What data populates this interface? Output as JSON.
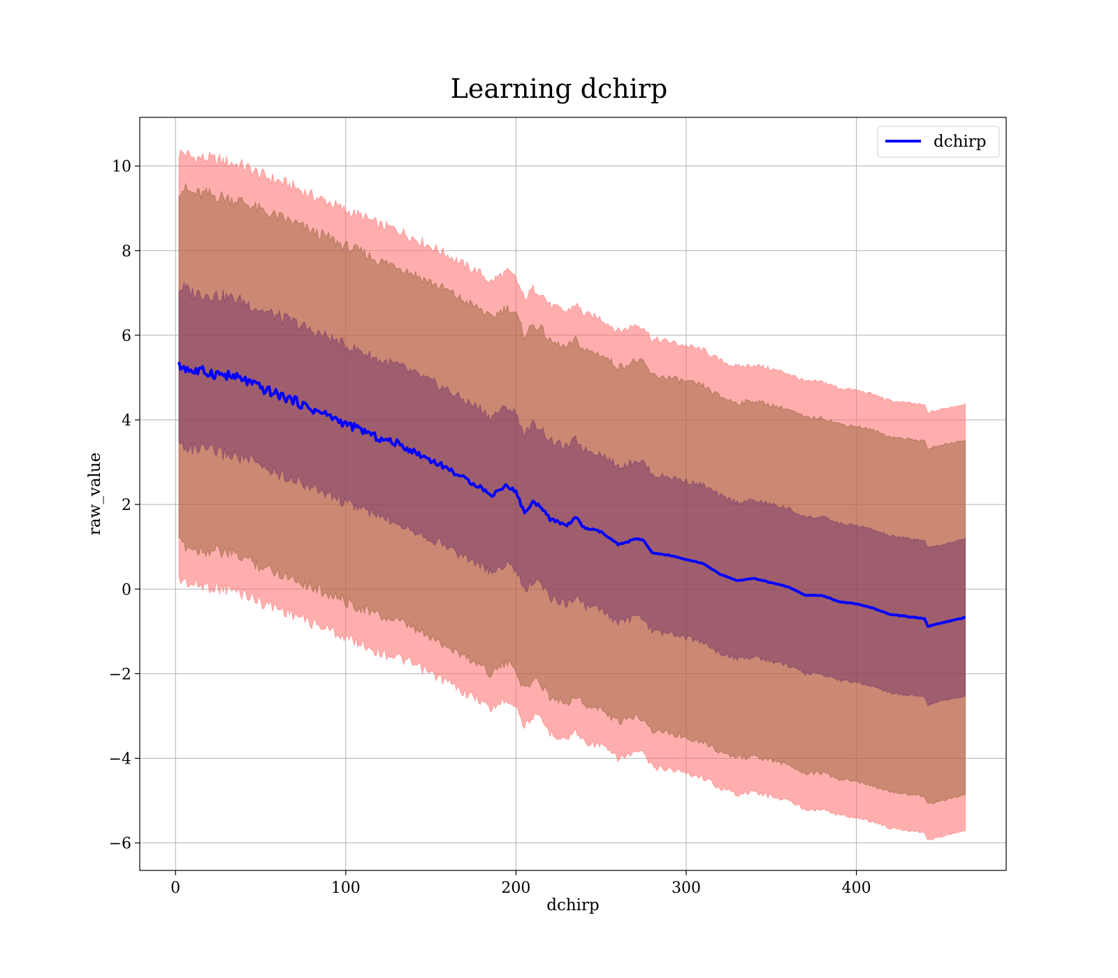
{
  "chart_data": {
    "type": "line",
    "title": "Learning dchirp",
    "xlabel": "dchirp",
    "ylabel": "raw_value",
    "xlim": [
      -21,
      488
    ],
    "ylim": [
      -6.65,
      11.15
    ],
    "xticks": [
      0,
      100,
      200,
      300,
      400
    ],
    "xtick_labels": [
      "0",
      "100",
      "200",
      "300",
      "400"
    ],
    "yticks": [
      -6,
      -4,
      -2,
      0,
      2,
      4,
      6,
      8,
      10
    ],
    "ytick_labels": [
      "−6",
      "−4",
      "−2",
      "0",
      "2",
      "4",
      "6",
      "8",
      "10"
    ],
    "grid": true,
    "legend": {
      "placement": "top-right",
      "entries": [
        "dchirp"
      ]
    },
    "colors": {
      "line": "#0000ff",
      "outer_band": "#ff6b6b",
      "middle_band": "#8b5a2b",
      "inner_band": "#6b2d6b",
      "grid": "#b0b0b0"
    },
    "series": [
      {
        "name": "dchirp",
        "x": [
          2,
          5,
          10,
          20,
          30,
          40,
          50,
          60,
          70,
          80,
          90,
          100,
          110,
          120,
          130,
          140,
          150,
          160,
          170,
          180,
          185,
          190,
          195,
          200,
          205,
          210,
          215,
          220,
          230,
          235,
          240,
          250,
          260,
          265,
          270,
          275,
          280,
          290,
          300,
          310,
          320,
          330,
          340,
          350,
          360,
          370,
          380,
          390,
          400,
          410,
          420,
          430,
          440,
          442,
          450,
          464
        ],
        "y": [
          5.25,
          5.26,
          5.15,
          5.12,
          5.05,
          4.95,
          4.75,
          4.6,
          4.45,
          4.25,
          4.1,
          3.9,
          3.75,
          3.55,
          3.45,
          3.25,
          3.05,
          2.85,
          2.6,
          2.4,
          2.2,
          2.35,
          2.45,
          2.3,
          1.8,
          2.05,
          1.95,
          1.65,
          1.5,
          1.7,
          1.45,
          1.35,
          1.05,
          1.1,
          1.2,
          1.15,
          0.85,
          0.8,
          0.7,
          0.6,
          0.35,
          0.2,
          0.25,
          0.15,
          0.05,
          -0.15,
          -0.15,
          -0.3,
          -0.35,
          -0.45,
          -0.6,
          -0.65,
          -0.7,
          -0.88,
          -0.8,
          -0.67
        ]
      }
    ],
    "bands": [
      {
        "name": "outer",
        "half_width": 5.05
      },
      {
        "name": "middle",
        "half_width": 4.2
      },
      {
        "name": "inner",
        "half_width": 1.85
      }
    ]
  }
}
